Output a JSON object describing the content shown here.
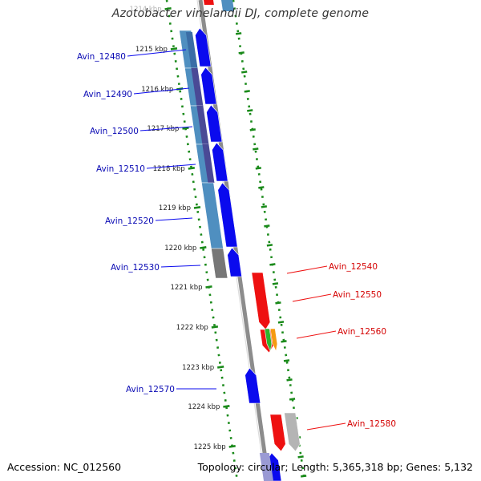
{
  "header": {
    "title": "Azotobacter vinelandii DJ, complete genome"
  },
  "footer": {
    "accession": "Accession: NC_012560",
    "stats": "Topology: circular; Length: 5,365,318 bp; Genes: 5,132"
  },
  "colors": {
    "forward_cds": "#0a0aee",
    "reverse_cds": "#ee1111",
    "blue_match": "#4f8fc0",
    "dark_match": "#4a4a96",
    "grey_match": "#777777",
    "grey_cds": "#b4b4b4",
    "green_cds": "#2bb52b",
    "orange_cds": "#f59a10",
    "tick_green": "#1a8a1a",
    "backbone": "#8c8c8c"
  },
  "ticks": [
    {
      "label": "1214 kbp"
    },
    {
      "label": "1215 kbp"
    },
    {
      "label": "1216 kbp"
    },
    {
      "label": "1217 kbp"
    },
    {
      "label": "1218 kbp"
    },
    {
      "label": "1219 kbp"
    },
    {
      "label": "1220 kbp"
    },
    {
      "label": "1221 kbp"
    },
    {
      "label": "1222 kbp"
    },
    {
      "label": "1223 kbp"
    },
    {
      "label": "1224 kbp"
    },
    {
      "label": "1225 kbp"
    }
  ],
  "gene_labels_left": [
    {
      "name": "Avin_12480"
    },
    {
      "name": "Avin_12490"
    },
    {
      "name": "Avin_12500"
    },
    {
      "name": "Avin_12510"
    },
    {
      "name": "Avin_12520"
    },
    {
      "name": "Avin_12530"
    },
    {
      "name": "Avin_12570"
    }
  ],
  "gene_labels_right": [
    {
      "name": "Avin_12540"
    },
    {
      "name": "Avin_12550"
    },
    {
      "name": "Avin_12560"
    },
    {
      "name": "Avin_12580"
    }
  ]
}
